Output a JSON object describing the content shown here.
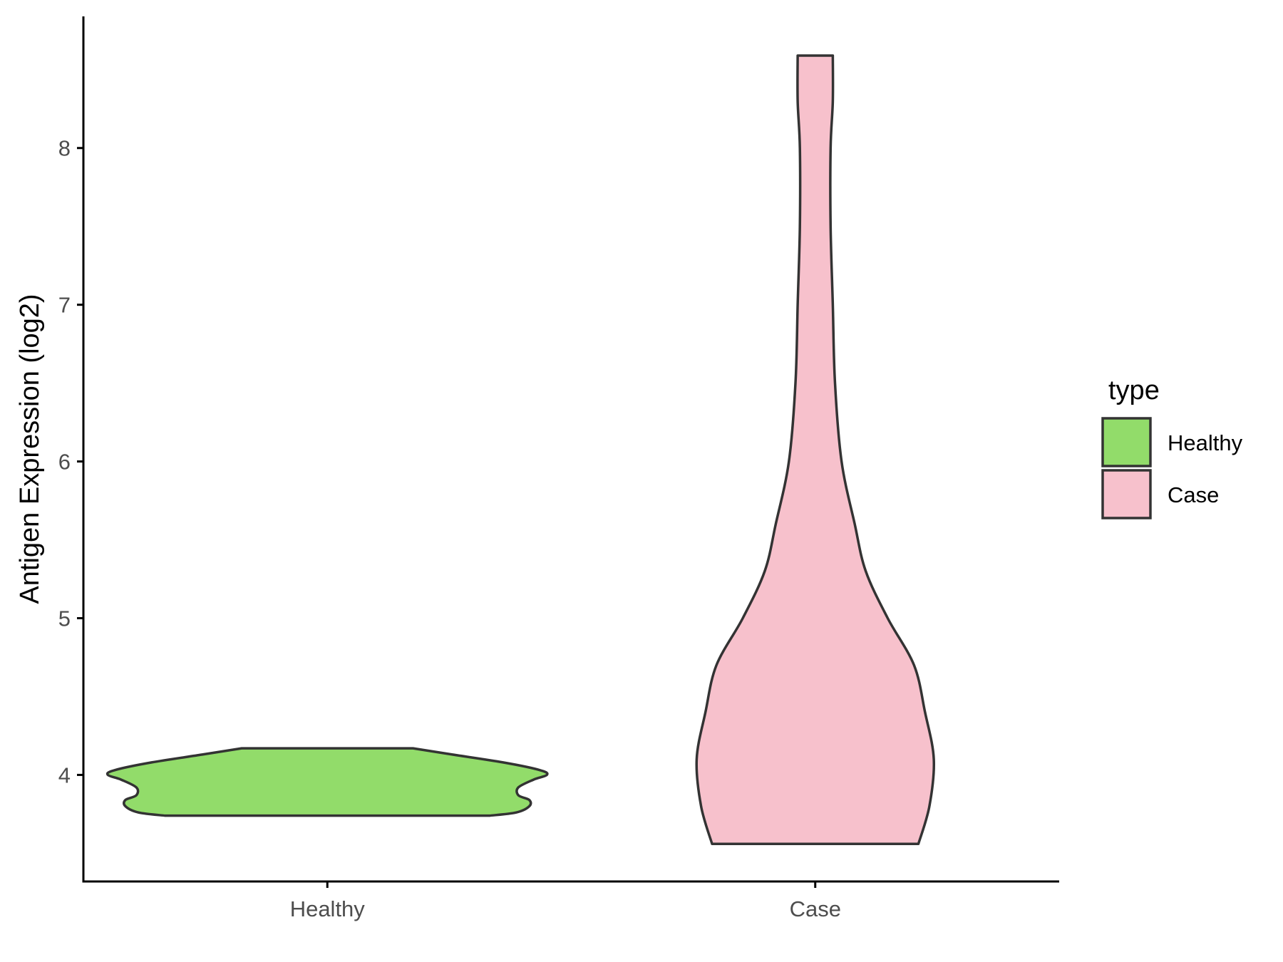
{
  "chart_data": {
    "type": "violin",
    "title": "",
    "xlabel": "",
    "ylabel": "Antigen Expression (log2)",
    "ylim": [
      3.32,
      8.84
    ],
    "yticks": [
      4,
      5,
      6,
      7,
      8
    ],
    "categories": [
      "Healthy",
      "Case"
    ],
    "legend": {
      "title": "type",
      "position": "right",
      "entries": [
        "Healthy",
        "Case"
      ]
    },
    "grid": false,
    "series": [
      {
        "name": "Healthy",
        "color": "#92dc6a",
        "y_min": 3.74,
        "y_max": 4.17,
        "density_profile": [
          [
            3.74,
            0.74
          ],
          [
            3.76,
            0.86
          ],
          [
            3.8,
            0.92
          ],
          [
            3.84,
            0.92
          ],
          [
            3.87,
            0.87
          ],
          [
            3.92,
            0.87
          ],
          [
            3.97,
            0.94
          ],
          [
            4.0,
            1.0
          ],
          [
            4.03,
            0.97
          ],
          [
            4.08,
            0.8
          ],
          [
            4.13,
            0.57
          ],
          [
            4.17,
            0.39
          ]
        ]
      },
      {
        "name": "Case",
        "color": "#f7c1cc",
        "y_min": 3.56,
        "y_max": 8.59,
        "density_profile": [
          [
            3.56,
            0.47
          ],
          [
            3.8,
            0.52
          ],
          [
            4.1,
            0.54
          ],
          [
            4.4,
            0.5
          ],
          [
            4.7,
            0.45
          ],
          [
            5.0,
            0.33
          ],
          [
            5.3,
            0.23
          ],
          [
            5.6,
            0.18
          ],
          [
            6.0,
            0.12
          ],
          [
            6.5,
            0.09
          ],
          [
            7.0,
            0.08
          ],
          [
            7.5,
            0.07
          ],
          [
            8.0,
            0.07
          ],
          [
            8.3,
            0.08
          ],
          [
            8.59,
            0.08
          ]
        ]
      }
    ]
  }
}
